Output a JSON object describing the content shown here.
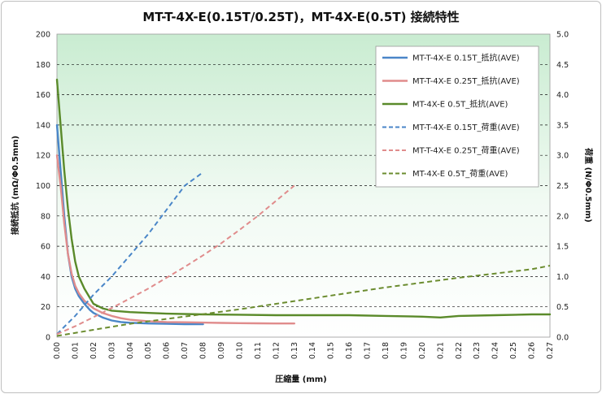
{
  "chart_data": {
    "type": "line",
    "title": "MT-T-4X-E(0.15T/0.25T)，MT-4X-E(0.5T) 接続特性",
    "xlabel": "圧縮量 (mm)",
    "ylabel_left": "接続抵抗 (mΩ/Φ0.5mm)",
    "ylabel_right": "荷重 (N/Φ0.5mm)",
    "xlim": [
      0,
      0.27
    ],
    "ylim_left": [
      0,
      200
    ],
    "ylim_right": [
      0,
      5.0
    ],
    "x_ticks": [
      "0.00",
      "0.01",
      "0.02",
      "0.03",
      "0.04",
      "0.05",
      "0.06",
      "0.07",
      "0.08",
      "0.09",
      "0.10",
      "0.11",
      "0.12",
      "0.13",
      "0.14",
      "0.15",
      "0.16",
      "0.17",
      "0.18",
      "0.19",
      "0.20",
      "0.21",
      "0.22",
      "0.23",
      "0.24",
      "0.25",
      "0.26",
      "0.27"
    ],
    "y_ticks_left": [
      "0",
      "20",
      "40",
      "60",
      "80",
      "100",
      "120",
      "140",
      "160",
      "180",
      "200"
    ],
    "y_ticks_right": [
      "0.0",
      "0.5",
      "1.0",
      "1.5",
      "2.0",
      "2.5",
      "3.0",
      "3.5",
      "4.0",
      "4.5",
      "5.0"
    ],
    "grid": "horizontal dashed",
    "background": "green gradient (top) to white (bottom)",
    "legend_position": "top-right",
    "series": [
      {
        "name": "MT-T-4X-E 0.15T_抵抗(AVE)",
        "axis": "left",
        "color": "#4a86c8",
        "dash": false,
        "x": [
          0.0,
          0.002,
          0.004,
          0.006,
          0.008,
          0.01,
          0.012,
          0.015,
          0.018,
          0.02,
          0.025,
          0.03,
          0.035,
          0.04,
          0.05,
          0.06,
          0.07,
          0.08
        ],
        "y": [
          140,
          110,
          80,
          55,
          40,
          32,
          27,
          22,
          18,
          16,
          13,
          11,
          10,
          9.5,
          9,
          8.8,
          8.6,
          8.5
        ]
      },
      {
        "name": "MT-T-4X-E 0.25T_抵抗(AVE)",
        "axis": "left",
        "color": "#e08c8c",
        "dash": false,
        "x": [
          0.0,
          0.002,
          0.004,
          0.006,
          0.008,
          0.01,
          0.012,
          0.015,
          0.018,
          0.02,
          0.025,
          0.03,
          0.035,
          0.04,
          0.05,
          0.06,
          0.07,
          0.08,
          0.09,
          0.1,
          0.11,
          0.12,
          0.13
        ],
        "y": [
          120,
          100,
          75,
          55,
          42,
          34,
          29,
          24,
          21,
          19,
          16,
          14,
          12.5,
          11.5,
          10.5,
          10,
          9.8,
          9.6,
          9.4,
          9.2,
          9.1,
          9.0,
          9.0
        ]
      },
      {
        "name": "MT-4X-E 0.5T_抵抗(AVE)",
        "axis": "left",
        "color": "#5a8a2a",
        "dash": false,
        "x": [
          0.0,
          0.002,
          0.004,
          0.006,
          0.008,
          0.01,
          0.012,
          0.015,
          0.018,
          0.02,
          0.025,
          0.03,
          0.04,
          0.05,
          0.06,
          0.08,
          0.1,
          0.12,
          0.14,
          0.16,
          0.18,
          0.2,
          0.21,
          0.22,
          0.24,
          0.26,
          0.27
        ],
        "y": [
          170,
          140,
          110,
          85,
          65,
          50,
          40,
          32,
          26,
          22,
          19,
          17.5,
          16.5,
          16,
          15.5,
          15,
          14.8,
          14.5,
          14.5,
          14.5,
          14,
          13.5,
          13,
          14,
          14.5,
          15,
          15
        ]
      },
      {
        "name": "MT-T-4X-E 0.15T_荷重(AVE)",
        "axis": "right",
        "color": "#4a86c8",
        "dash": true,
        "x": [
          0.0,
          0.01,
          0.02,
          0.03,
          0.04,
          0.05,
          0.06,
          0.07,
          0.08
        ],
        "y": [
          0.05,
          0.35,
          0.7,
          1.0,
          1.35,
          1.7,
          2.1,
          2.5,
          2.72
        ]
      },
      {
        "name": "MT-T-4X-E 0.25T_荷重(AVE)",
        "axis": "right",
        "color": "#e08c8c",
        "dash": true,
        "x": [
          0.0,
          0.01,
          0.02,
          0.03,
          0.04,
          0.05,
          0.06,
          0.07,
          0.08,
          0.09,
          0.1,
          0.11,
          0.12,
          0.13
        ],
        "y": [
          0.05,
          0.18,
          0.33,
          0.48,
          0.64,
          0.8,
          0.98,
          1.16,
          1.35,
          1.55,
          1.77,
          2.0,
          2.25,
          2.5
        ]
      },
      {
        "name": "MT-4X-E 0.5T_荷重(AVE)",
        "axis": "right",
        "color": "#6b8c2f",
        "dash": true,
        "x": [
          0.0,
          0.02,
          0.04,
          0.06,
          0.08,
          0.1,
          0.12,
          0.14,
          0.16,
          0.18,
          0.2,
          0.22,
          0.24,
          0.26,
          0.27
        ],
        "y": [
          0.02,
          0.12,
          0.22,
          0.3,
          0.38,
          0.46,
          0.55,
          0.64,
          0.73,
          0.82,
          0.9,
          0.98,
          1.05,
          1.12,
          1.18
        ]
      }
    ]
  }
}
